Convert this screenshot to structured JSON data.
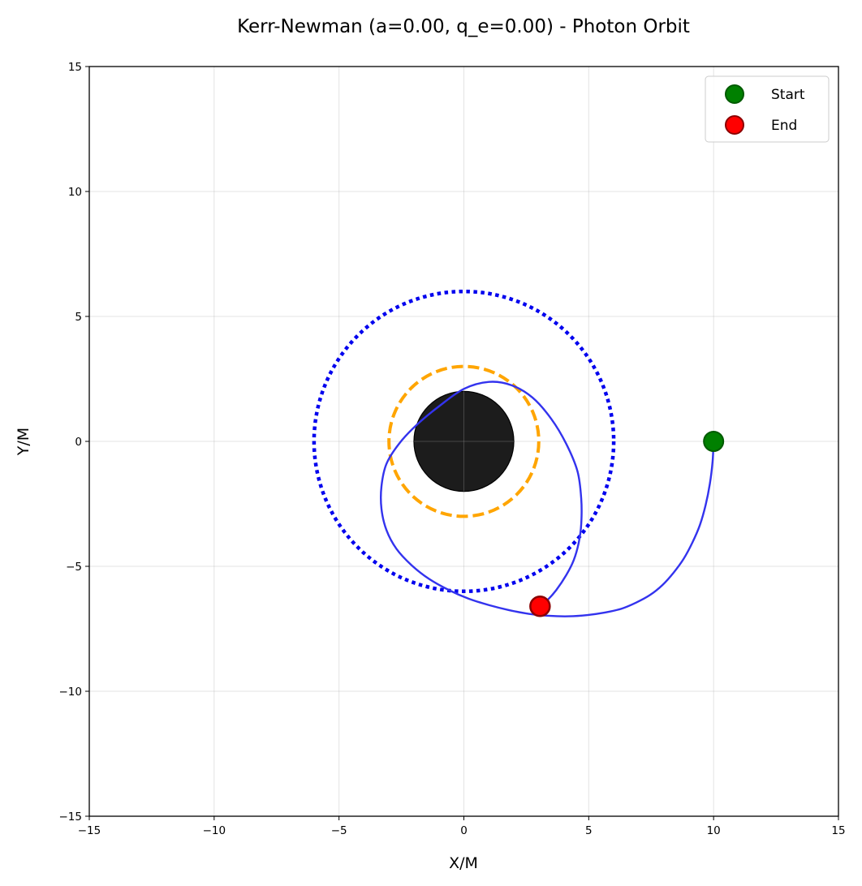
{
  "chart_data": {
    "type": "line",
    "title": "Kerr-Newman (a=0.00, q_e=0.00) - Photon Orbit",
    "xlabel": "X/M",
    "ylabel": "Y/M",
    "xlim": [
      -15,
      15
    ],
    "ylim": [
      -15,
      15
    ],
    "xticks": [
      -15,
      -10,
      -5,
      0,
      5,
      10,
      15
    ],
    "yticks": [
      -15,
      -10,
      -5,
      0,
      5,
      10,
      15
    ],
    "xtick_labels": [
      "−15",
      "−10",
      "−5",
      "0",
      "5",
      "10",
      "15"
    ],
    "ytick_labels": [
      "−15",
      "−10",
      "−5",
      "0",
      "5",
      "10",
      "15"
    ],
    "grid": true,
    "legend_position": "top-right",
    "colors": {
      "horizon": "#1c1c1c",
      "photon_sphere": "#ffa500",
      "isco": "#0000ee",
      "trajectory": "#3333ee",
      "start": "#008000",
      "end": "#ff0000"
    },
    "horizon_radius": 2,
    "photon_sphere_radius": 3,
    "isco_radius": 6,
    "trajectory": {
      "x": [
        10.0,
        9.96,
        9.85,
        9.68,
        9.45,
        9.15,
        8.8,
        8.4,
        7.95,
        7.45,
        6.9,
        6.3,
        5.65,
        4.95,
        4.2,
        3.4,
        2.6,
        1.8,
        1.0,
        0.2,
        -0.6,
        -1.4,
        -2.1,
        -2.7,
        -3.1,
        -3.3,
        -3.3,
        -3.1,
        -2.6,
        -1.9,
        -1.0,
        0.0,
        1.0,
        1.9,
        2.75,
        3.5,
        4.1,
        4.55,
        4.7,
        4.7,
        4.6,
        4.4,
        4.1,
        3.7,
        3.35,
        3.05
      ],
      "y": [
        0.0,
        -0.8,
        -1.7,
        -2.55,
        -3.35,
        -4.05,
        -4.7,
        -5.25,
        -5.75,
        -6.15,
        -6.45,
        -6.7,
        -6.85,
        -6.95,
        -7.0,
        -6.98,
        -6.9,
        -6.75,
        -6.55,
        -6.3,
        -5.95,
        -5.5,
        -4.95,
        -4.3,
        -3.55,
        -2.7,
        -1.8,
        -0.9,
        -0.1,
        0.65,
        1.4,
        2.1,
        2.38,
        2.25,
        1.75,
        0.9,
        -0.1,
        -1.2,
        -2.3,
        -3.3,
        -4.05,
        -4.75,
        -5.35,
        -5.95,
        -6.35,
        -6.6
      ]
    },
    "start_point": {
      "x": 10.0,
      "y": 0.0
    },
    "end_point": {
      "x": 3.05,
      "y": -6.6
    },
    "legend": [
      {
        "label": "Start",
        "color": "#008000",
        "edge": "#005a00"
      },
      {
        "label": "End",
        "color": "#ff0000",
        "edge": "#8b0000"
      }
    ]
  }
}
